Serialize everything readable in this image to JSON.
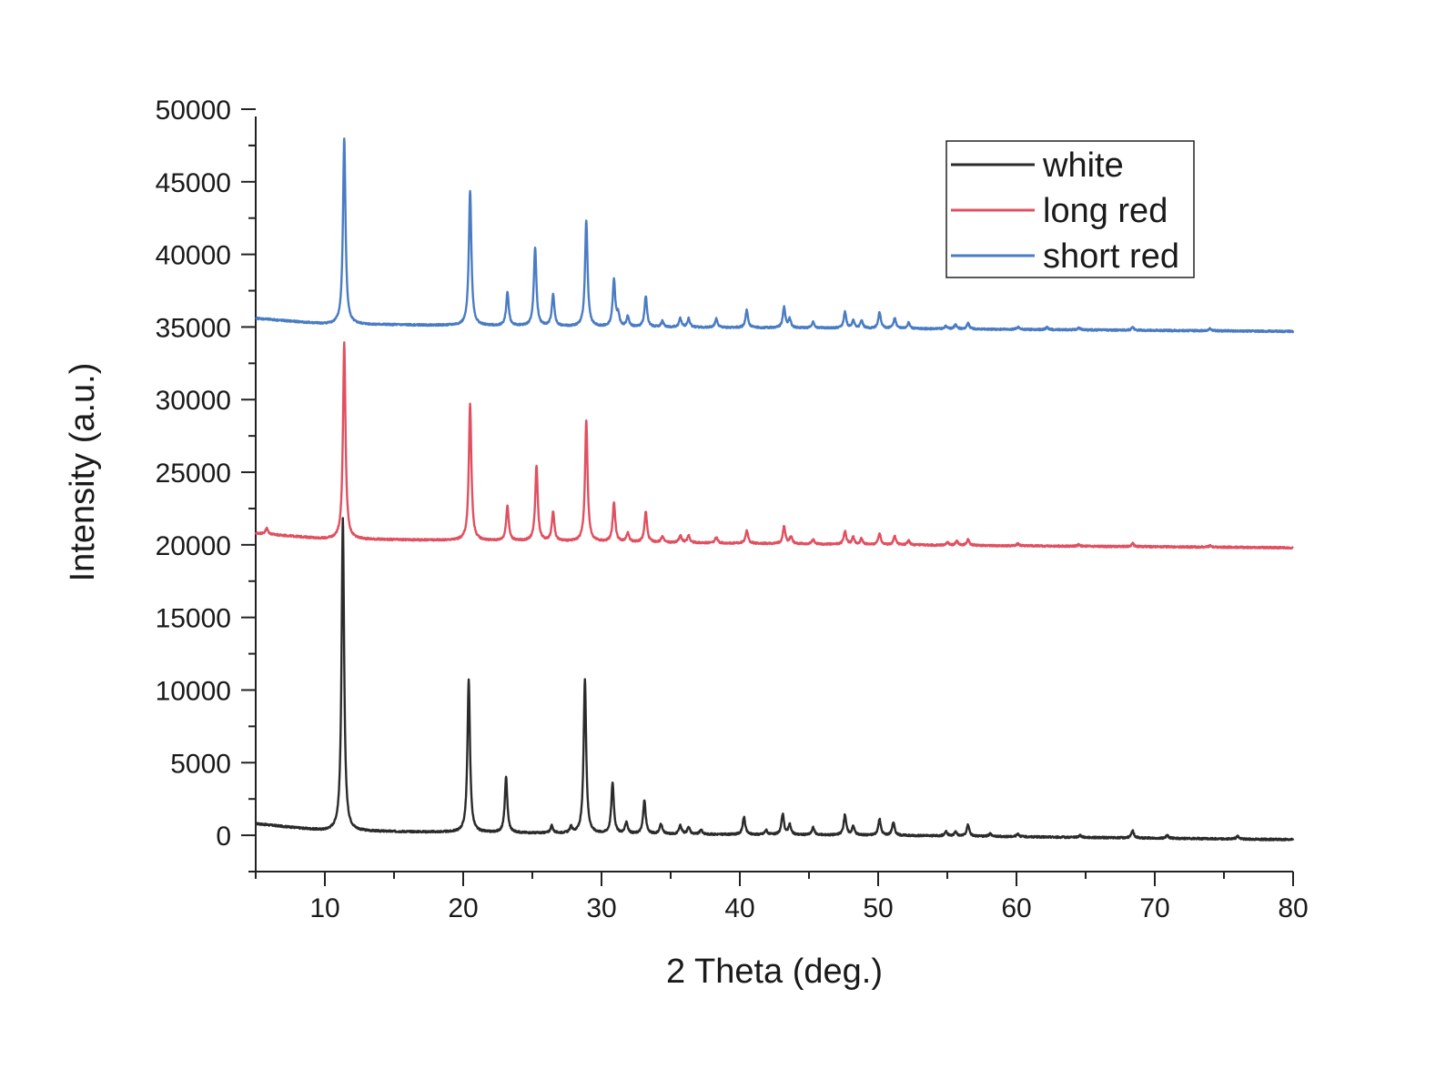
{
  "chart_data": {
    "type": "line",
    "xlabel": "2 Theta (deg.)",
    "ylabel": "Intensity (a.u.)",
    "xlim": [
      5,
      80
    ],
    "ylim": [
      -2500,
      50000
    ],
    "xticks": [
      10,
      20,
      30,
      40,
      50,
      60,
      70,
      80
    ],
    "yticks": [
      0,
      5000,
      10000,
      15000,
      20000,
      25000,
      30000,
      35000,
      40000,
      45000,
      50000
    ],
    "xtick_labels": [
      "10",
      "20",
      "30",
      "40",
      "50",
      "60",
      "70",
      "80"
    ],
    "ytick_labels": [
      "0",
      "5000",
      "10000",
      "15000",
      "20000",
      "25000",
      "30000",
      "35000",
      "40000",
      "45000",
      "50000"
    ],
    "legend_position": "top-right",
    "series": [
      {
        "name": "white",
        "color": "#2b2b2b",
        "baseline": [
          [
            5,
            800
          ],
          [
            10,
            300
          ],
          [
            20,
            200
          ],
          [
            30,
            100
          ],
          [
            50,
            0
          ],
          [
            80,
            -300
          ]
        ],
        "peaks": [
          [
            11.3,
            21500
          ],
          [
            20.4,
            10500
          ],
          [
            23.1,
            3800
          ],
          [
            26.4,
            500
          ],
          [
            27.8,
            400
          ],
          [
            28.8,
            10600
          ],
          [
            30.8,
            3500
          ],
          [
            31.8,
            800
          ],
          [
            33.1,
            2300
          ],
          [
            34.3,
            700
          ],
          [
            35.7,
            600
          ],
          [
            36.3,
            500
          ],
          [
            37.2,
            300
          ],
          [
            40.3,
            1200
          ],
          [
            41.9,
            300
          ],
          [
            43.1,
            1400
          ],
          [
            43.6,
            700
          ],
          [
            45.3,
            500
          ],
          [
            47.6,
            1400
          ],
          [
            48.2,
            600
          ],
          [
            50.1,
            1100
          ],
          [
            51.1,
            900
          ],
          [
            54.9,
            300
          ],
          [
            55.6,
            300
          ],
          [
            56.5,
            800
          ],
          [
            58.1,
            200
          ],
          [
            60.1,
            200
          ],
          [
            64.6,
            150
          ],
          [
            68.4,
            500
          ],
          [
            70.9,
            200
          ],
          [
            76.0,
            200
          ]
        ]
      },
      {
        "name": "long red",
        "color": "#e05060",
        "baseline": [
          [
            5,
            20800
          ],
          [
            10,
            20400
          ],
          [
            20,
            20300
          ],
          [
            30,
            20200
          ],
          [
            50,
            20000
          ],
          [
            80,
            19800
          ]
        ],
        "peaks": [
          [
            5.8,
            400
          ],
          [
            11.4,
            13500
          ],
          [
            20.5,
            9400
          ],
          [
            23.2,
            2400
          ],
          [
            25.3,
            5200
          ],
          [
            26.5,
            2000
          ],
          [
            28.9,
            8300
          ],
          [
            30.9,
            2700
          ],
          [
            31.9,
            600
          ],
          [
            33.2,
            2100
          ],
          [
            34.4,
            400
          ],
          [
            35.7,
            500
          ],
          [
            36.3,
            500
          ],
          [
            38.3,
            400
          ],
          [
            40.5,
            900
          ],
          [
            43.2,
            1200
          ],
          [
            43.7,
            500
          ],
          [
            45.3,
            300
          ],
          [
            47.6,
            900
          ],
          [
            48.2,
            500
          ],
          [
            48.8,
            400
          ],
          [
            50.1,
            800
          ],
          [
            51.2,
            600
          ],
          [
            52.2,
            300
          ],
          [
            55.0,
            200
          ],
          [
            55.7,
            300
          ],
          [
            56.5,
            400
          ],
          [
            60.1,
            150
          ],
          [
            64.5,
            100
          ],
          [
            68.4,
            200
          ],
          [
            74.0,
            100
          ]
        ]
      },
      {
        "name": "short red",
        "color": "#4a7cc4",
        "baseline": [
          [
            5,
            35600
          ],
          [
            10,
            35200
          ],
          [
            20,
            35100
          ],
          [
            30,
            35000
          ],
          [
            50,
            34900
          ],
          [
            80,
            34700
          ]
        ],
        "peaks": [
          [
            11.4,
            12800
          ],
          [
            20.5,
            9300
          ],
          [
            23.2,
            2300
          ],
          [
            25.2,
            5400
          ],
          [
            26.5,
            2200
          ],
          [
            28.9,
            7300
          ],
          [
            30.9,
            3200
          ],
          [
            31.2,
            800
          ],
          [
            31.9,
            700
          ],
          [
            33.2,
            2100
          ],
          [
            34.4,
            400
          ],
          [
            35.7,
            600
          ],
          [
            36.3,
            600
          ],
          [
            38.3,
            600
          ],
          [
            40.5,
            1200
          ],
          [
            43.2,
            1400
          ],
          [
            43.6,
            600
          ],
          [
            45.3,
            400
          ],
          [
            47.6,
            1100
          ],
          [
            48.2,
            500
          ],
          [
            48.8,
            500
          ],
          [
            50.1,
            1100
          ],
          [
            51.2,
            700
          ],
          [
            52.2,
            400
          ],
          [
            54.9,
            200
          ],
          [
            55.6,
            300
          ],
          [
            56.5,
            400
          ],
          [
            60.1,
            150
          ],
          [
            62.2,
            150
          ],
          [
            64.5,
            150
          ],
          [
            68.4,
            200
          ],
          [
            74.0,
            150
          ]
        ]
      }
    ]
  }
}
